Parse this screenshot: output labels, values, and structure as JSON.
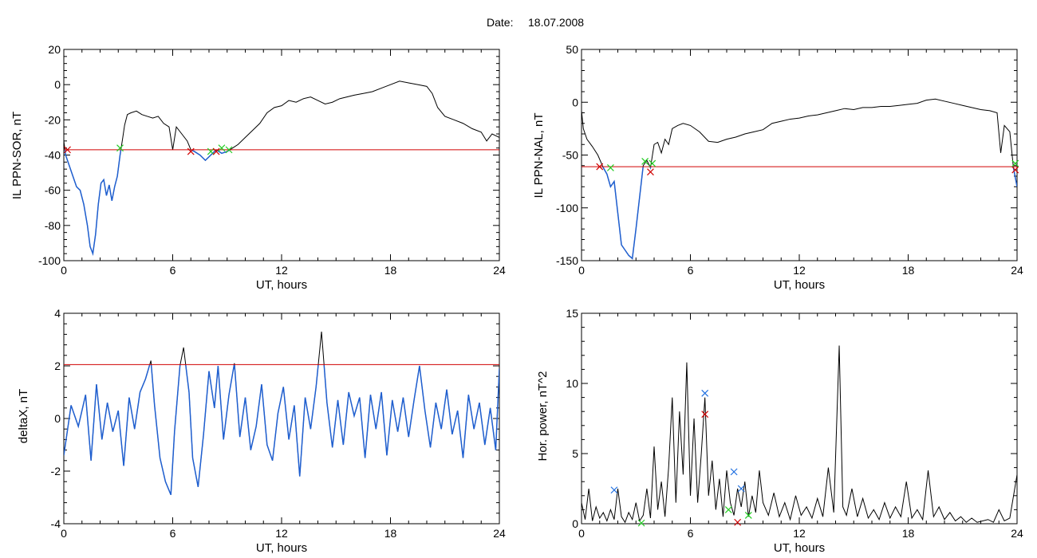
{
  "header": {
    "date_label": "Date:",
    "date_value": "18.07.2008"
  },
  "colors": {
    "trace": "#000000",
    "blue_trace": "#1f5fd0",
    "threshold": "#d00000",
    "marker_red": "#d00000",
    "marker_green": "#22cc22",
    "marker_blue": "#1f6fe0"
  },
  "chart_data": [
    {
      "id": "sor",
      "type": "line",
      "ylabel": "IL PPN-SOR, nT",
      "xlabel": "UT, hours",
      "xlim": [
        0,
        24
      ],
      "ylim": [
        -100,
        20
      ],
      "xticks": [
        "0",
        "6",
        "12",
        "18",
        "24"
      ],
      "yticks": [
        "20",
        "0",
        "-20",
        "-40",
        "-60",
        "-80",
        "-100"
      ],
      "threshold": -37,
      "series": [
        {
          "x": [
            0,
            0.1,
            0.3,
            0.5,
            0.7,
            0.9,
            1.1,
            1.3,
            1.45,
            1.6,
            1.75,
            1.9,
            2.05,
            2.2,
            2.35,
            2.5,
            2.65,
            2.8,
            2.95,
            3.1,
            3.25,
            3.35,
            3.5,
            3.7,
            4.0,
            4.3,
            4.6,
            4.9,
            5.2,
            5.5,
            5.8,
            6.0,
            6.2,
            6.5,
            6.8,
            7.0,
            7.2,
            7.5,
            7.8,
            8.1,
            8.4,
            8.7,
            9.0,
            9.3,
            9.6,
            10.0,
            10.4,
            10.8,
            11.2,
            11.6,
            12.0,
            12.4,
            12.8,
            13.2,
            13.6,
            14.0,
            14.4,
            14.8,
            15.2,
            15.6,
            16.0,
            16.5,
            17.0,
            17.5,
            18.0,
            18.5,
            19.0,
            19.5,
            20.0,
            20.3,
            20.6,
            21.0,
            21.5,
            22.0,
            22.5,
            23.0,
            23.3,
            23.6,
            24.0
          ],
          "y": [
            -32,
            -40,
            -46,
            -52,
            -58,
            -60,
            -68,
            -80,
            -92,
            -96,
            -85,
            -68,
            -56,
            -54,
            -63,
            -57,
            -66,
            -58,
            -52,
            -40,
            -30,
            -23,
            -17,
            -16,
            -15,
            -17,
            -18,
            -19,
            -18,
            -22,
            -24,
            -37,
            -24,
            -28,
            -32,
            -37,
            -38,
            -40,
            -43,
            -40,
            -37,
            -39,
            -38,
            -36,
            -34,
            -30,
            -26,
            -22,
            -16,
            -13,
            -12,
            -9,
            -10,
            -8,
            -7,
            -9,
            -11,
            -10,
            -8,
            -7,
            -6,
            -5,
            -4,
            -2,
            0,
            2,
            1,
            0,
            -1,
            -5,
            -13,
            -18,
            -20,
            -22,
            -25,
            -27,
            -32,
            -28,
            -30
          ]
        }
      ],
      "markers": [
        {
          "x": 0.2,
          "y": -37,
          "color": "red"
        },
        {
          "x": 3.1,
          "y": -36,
          "color": "green"
        },
        {
          "x": 7.0,
          "y": -38,
          "color": "red"
        },
        {
          "x": 8.1,
          "y": -38,
          "color": "green"
        },
        {
          "x": 8.4,
          "y": -38,
          "color": "red"
        },
        {
          "x": 8.7,
          "y": -36,
          "color": "green"
        },
        {
          "x": 9.1,
          "y": -37,
          "color": "green"
        }
      ]
    },
    {
      "id": "nal",
      "type": "line",
      "ylabel": "IL PPN-NAL, nT",
      "xlabel": "UT, hours",
      "xlim": [
        0,
        24
      ],
      "ylim": [
        -150,
        50
      ],
      "xticks": [
        "0",
        "6",
        "12",
        "18",
        "24"
      ],
      "yticks": [
        "50",
        "0",
        "-50",
        "-100",
        "-150"
      ],
      "threshold": -61,
      "series": [
        {
          "x": [
            0,
            0.1,
            0.3,
            0.6,
            0.9,
            1.2,
            1.4,
            1.6,
            1.8,
            2.0,
            2.2,
            2.4,
            2.6,
            2.8,
            3.0,
            3.2,
            3.4,
            3.6,
            3.8,
            4.0,
            4.2,
            4.4,
            4.6,
            4.8,
            5.0,
            5.3,
            5.6,
            6.0,
            6.5,
            7.0,
            7.5,
            8.0,
            8.5,
            9.0,
            9.5,
            10.0,
            10.5,
            11.0,
            11.5,
            12.0,
            12.5,
            13.0,
            13.5,
            14.0,
            14.5,
            15.0,
            15.5,
            16.0,
            16.5,
            17.0,
            17.5,
            18.0,
            18.5,
            19.0,
            19.5,
            20.0,
            20.5,
            21.0,
            21.5,
            22.0,
            22.5,
            22.9,
            23.1,
            23.3,
            23.6,
            23.8,
            24.0
          ],
          "y": [
            -8,
            -25,
            -35,
            -42,
            -50,
            -62,
            -68,
            -80,
            -75,
            -105,
            -135,
            -140,
            -145,
            -148,
            -120,
            -90,
            -60,
            -55,
            -62,
            -40,
            -38,
            -48,
            -35,
            -40,
            -25,
            -22,
            -20,
            -22,
            -28,
            -37,
            -38,
            -35,
            -33,
            -30,
            -28,
            -26,
            -20,
            -18,
            -16,
            -15,
            -13,
            -12,
            -10,
            -8,
            -6,
            -7,
            -5,
            -5,
            -4,
            -4,
            -3,
            -2,
            -1,
            2,
            3,
            1,
            -1,
            -3,
            -5,
            -7,
            -8,
            -10,
            -48,
            -22,
            -28,
            -62,
            -80
          ]
        }
      ],
      "markers": [
        {
          "x": 1.0,
          "y": -61,
          "color": "red"
        },
        {
          "x": 1.6,
          "y": -62,
          "color": "green"
        },
        {
          "x": 3.5,
          "y": -56,
          "color": "green"
        },
        {
          "x": 3.8,
          "y": -66,
          "color": "red"
        },
        {
          "x": 3.9,
          "y": -58,
          "color": "green"
        },
        {
          "x": 23.9,
          "y": -64,
          "color": "red"
        },
        {
          "x": 23.9,
          "y": -58,
          "color": "green"
        }
      ]
    },
    {
      "id": "deltax",
      "type": "line",
      "ylabel": "deltaX, nT",
      "xlabel": "UT, hours",
      "xlim": [
        0,
        24
      ],
      "ylim": [
        -4,
        4
      ],
      "xticks": [
        "0",
        "6",
        "12",
        "18",
        "24"
      ],
      "yticks": [
        "4",
        "2",
        "0",
        "-2",
        "-4"
      ],
      "threshold": 2.05,
      "series": [
        {
          "x": [
            0,
            0.4,
            0.8,
            1.2,
            1.5,
            1.8,
            2.1,
            2.4,
            2.7,
            3.0,
            3.3,
            3.6,
            3.9,
            4.2,
            4.5,
            4.8,
            5.0,
            5.3,
            5.6,
            5.9,
            6.1,
            6.4,
            6.6,
            6.9,
            7.1,
            7.4,
            7.7,
            8.0,
            8.3,
            8.5,
            8.8,
            9.1,
            9.4,
            9.7,
            10.0,
            10.3,
            10.6,
            10.9,
            11.2,
            11.5,
            11.8,
            12.1,
            12.4,
            12.7,
            13.0,
            13.3,
            13.6,
            13.9,
            14.2,
            14.5,
            14.8,
            15.1,
            15.4,
            15.7,
            16.0,
            16.3,
            16.6,
            16.9,
            17.2,
            17.5,
            17.8,
            18.1,
            18.4,
            18.7,
            19.0,
            19.3,
            19.6,
            19.9,
            20.2,
            20.5,
            20.8,
            21.1,
            21.4,
            21.7,
            22.0,
            22.3,
            22.6,
            22.9,
            23.2,
            23.5,
            23.8,
            24.0
          ],
          "y": [
            -1.4,
            0.5,
            -0.3,
            0.9,
            -1.6,
            1.3,
            -0.8,
            0.6,
            -0.5,
            0.3,
            -1.8,
            0.8,
            -0.4,
            1.0,
            1.5,
            2.2,
            0.5,
            -1.5,
            -2.4,
            -2.9,
            -0.5,
            2.0,
            2.7,
            1.0,
            -1.5,
            -2.6,
            -0.6,
            1.8,
            0.4,
            2.0,
            -0.8,
            0.9,
            2.1,
            -0.7,
            0.8,
            -1.2,
            -0.3,
            1.3,
            -1.0,
            -1.6,
            0.2,
            1.2,
            -0.8,
            0.5,
            -2.2,
            0.8,
            -0.4,
            1.2,
            3.3,
            0.6,
            -1.1,
            0.7,
            -1.0,
            1.0,
            0.1,
            0.8,
            -1.5,
            0.9,
            -0.4,
            1.0,
            -1.4,
            0.7,
            -0.5,
            0.8,
            -0.7,
            0.7,
            2.0,
            0.3,
            -1.1,
            0.6,
            -0.4,
            1.1,
            -0.6,
            0.3,
            -1.5,
            0.9,
            -0.4,
            0.6,
            -1.0,
            0.4,
            -1.2,
            1.9
          ]
        }
      ],
      "markers": []
    },
    {
      "id": "power",
      "type": "line",
      "ylabel": "Hor. power, nT^2",
      "xlabel": "UT, hours",
      "xlim": [
        0,
        24
      ],
      "ylim": [
        0,
        15
      ],
      "xticks": [
        "0",
        "6",
        "12",
        "18",
        "24"
      ],
      "yticks": [
        "15",
        "10",
        "5",
        "0"
      ],
      "threshold": null,
      "series": [
        {
          "x": [
            0,
            0.2,
            0.4,
            0.6,
            0.8,
            1.0,
            1.2,
            1.4,
            1.6,
            1.8,
            2.0,
            2.2,
            2.4,
            2.6,
            2.8,
            3.0,
            3.2,
            3.4,
            3.6,
            3.8,
            4.0,
            4.2,
            4.4,
            4.6,
            4.8,
            5.0,
            5.2,
            5.4,
            5.6,
            5.8,
            6.0,
            6.2,
            6.4,
            6.6,
            6.8,
            7.0,
            7.2,
            7.4,
            7.6,
            7.8,
            8.0,
            8.2,
            8.4,
            8.6,
            8.8,
            9.0,
            9.2,
            9.4,
            9.6,
            9.8,
            10.0,
            10.3,
            10.6,
            10.9,
            11.2,
            11.5,
            11.8,
            12.1,
            12.4,
            12.7,
            13.0,
            13.3,
            13.6,
            13.9,
            14.2,
            14.4,
            14.6,
            14.9,
            15.2,
            15.5,
            15.8,
            16.1,
            16.4,
            16.7,
            17.0,
            17.3,
            17.6,
            17.9,
            18.2,
            18.5,
            18.8,
            19.1,
            19.4,
            19.7,
            20.0,
            20.3,
            20.6,
            20.9,
            21.2,
            21.5,
            21.8,
            22.1,
            22.4,
            22.7,
            23.0,
            23.3,
            23.6,
            24.0
          ],
          "y": [
            1.5,
            0.3,
            2.5,
            0.2,
            1.2,
            0.4,
            0.8,
            0.2,
            1.0,
            0.3,
            2.5,
            0.5,
            0.1,
            0.8,
            0.3,
            1.5,
            0.2,
            0.6,
            2.5,
            0.4,
            5.5,
            1.0,
            3.0,
            0.5,
            4.0,
            9.0,
            1.5,
            8.0,
            3.5,
            11.5,
            2.0,
            7.5,
            1.5,
            5.0,
            9.0,
            2.0,
            4.5,
            1.0,
            3.2,
            0.5,
            3.8,
            1.5,
            0.6,
            2.5,
            1.2,
            3.0,
            0.5,
            2.0,
            0.8,
            3.8,
            1.5,
            0.6,
            2.2,
            0.5,
            1.5,
            0.3,
            2.0,
            0.6,
            1.2,
            0.4,
            1.8,
            0.5,
            4.0,
            0.8,
            12.7,
            1.2,
            0.6,
            2.5,
            0.5,
            1.8,
            0.4,
            1.0,
            0.3,
            1.5,
            0.4,
            1.2,
            0.5,
            3.0,
            0.4,
            1.0,
            0.3,
            3.8,
            0.5,
            1.2,
            0.3,
            0.8,
            0.2,
            0.5,
            0.1,
            0.4,
            0.1,
            0.2,
            0.3,
            0.1,
            1.0,
            0.2,
            0.4,
            3.5
          ]
        }
      ],
      "markers": [
        {
          "x": 1.8,
          "y": 2.4,
          "color": "blue"
        },
        {
          "x": 3.3,
          "y": 0.05,
          "color": "green"
        },
        {
          "x": 6.8,
          "y": 9.3,
          "color": "blue"
        },
        {
          "x": 6.8,
          "y": 7.8,
          "color": "red"
        },
        {
          "x": 8.1,
          "y": 1.0,
          "color": "green"
        },
        {
          "x": 8.4,
          "y": 3.7,
          "color": "blue"
        },
        {
          "x": 8.6,
          "y": 0.1,
          "color": "red"
        },
        {
          "x": 8.8,
          "y": 2.5,
          "color": "blue"
        },
        {
          "x": 9.2,
          "y": 0.6,
          "color": "green"
        }
      ]
    }
  ]
}
